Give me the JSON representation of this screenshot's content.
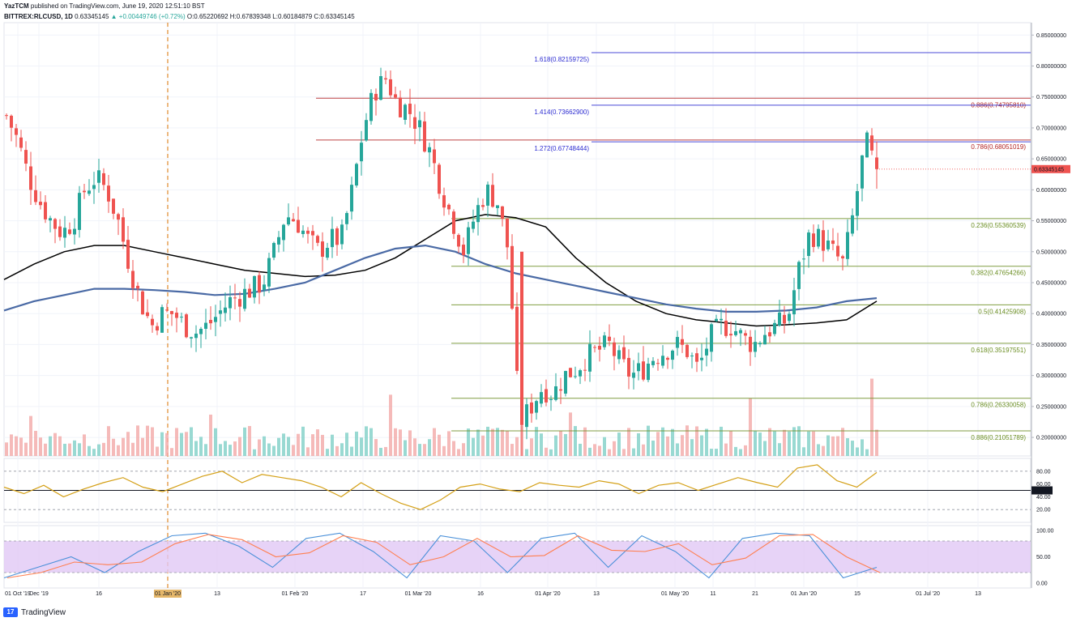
{
  "header": {
    "line1_author": "YazTCM",
    "line1_rest": "published on TradingView.com, June 19, 2020 12:51:10 BST",
    "symbol": "BITTREX:RLCUSD, 1D",
    "last": "0.63345145",
    "change": "▲ +0.00449746 (+0.72%)",
    "ohlc": "O:0.65220692 H:0.67839348 L:0.60184879 C:0.63345145"
  },
  "footer": {
    "brand": "TradingView"
  },
  "colors": {
    "up": "#26a69a",
    "down": "#ef5350",
    "vol_up": "#7fcfc7",
    "vol_down": "#f3a9a7",
    "ma_black": "#000000",
    "ma_blue": "#4a6aa5",
    "fib_green": "#6b8e23",
    "fib_red": "#b22222",
    "fib_blue": "#2c2cd1",
    "rsi": "#d4a017",
    "stoch_k": "#4a90d9",
    "stoch_d": "#ff7f50",
    "stoch_band": "#e1c8f5",
    "event_line": "#e08a2c"
  },
  "chart_data": {
    "type": "candlestick",
    "title": "BITTREX:RLCUSD, 1D",
    "y_range": [
      0.17,
      0.87
    ],
    "price_ticks": [
      "0.85000000",
      "0.80000000",
      "0.75000000",
      "0.70000000",
      "0.65000000",
      "0.60000000",
      "0.55000000",
      "0.50000000",
      "0.45000000",
      "0.40000000",
      "0.35000000",
      "0.30000000",
      "0.25000000",
      "0.20000000"
    ],
    "last_price_label": "0.63345145",
    "x_labels": [
      "01 Oct '19",
      "Dec '19",
      "16",
      "01 Jan '20",
      "13",
      "01 Feb '20",
      "17",
      "01 Mar '20",
      "16",
      "01 Apr '20",
      "13",
      "01 May '20",
      "11",
      "21",
      "01 Jun '20",
      "15",
      "01 Jul '20",
      "13"
    ],
    "fib_levels": [
      {
        "label": "1.618(0.82159725)",
        "value": 0.82159725,
        "side": "left",
        "color": "blue"
      },
      {
        "label": "0.886(0.74795810)",
        "value": 0.7479581,
        "side": "right",
        "color": "red"
      },
      {
        "label": "1.414(0.73662900)",
        "value": 0.736629,
        "side": "left",
        "color": "blue"
      },
      {
        "label": "0.786(0.68051019)",
        "value": 0.68051019,
        "side": "right",
        "color": "red"
      },
      {
        "label": "1.272(0.67748444)",
        "value": 0.67748444,
        "side": "left",
        "color": "blue"
      },
      {
        "label": "0.236(0.55360539)",
        "value": 0.55360539,
        "side": "right",
        "color": "green"
      },
      {
        "label": "0.382(0.47654266)",
        "value": 0.47654266,
        "side": "right",
        "color": "green"
      },
      {
        "label": "0.5(0.41425908)",
        "value": 0.41425908,
        "side": "right",
        "color": "green"
      },
      {
        "label": "0.618(0.35197551)",
        "value": 0.35197551,
        "side": "right",
        "color": "green"
      },
      {
        "label": "0.786(0.26330058)",
        "value": 0.26330058,
        "side": "right",
        "color": "green"
      },
      {
        "label": "0.886(0.21051789)",
        "value": 0.21051789,
        "side": "right",
        "color": "green"
      }
    ],
    "price_path": [
      0.72,
      0.68,
      0.62,
      0.58,
      0.55,
      0.53,
      0.55,
      0.6,
      0.62,
      0.6,
      0.55,
      0.48,
      0.42,
      0.38,
      0.4,
      0.4,
      0.38,
      0.37,
      0.38,
      0.4,
      0.42,
      0.43,
      0.44,
      0.45,
      0.5,
      0.56,
      0.55,
      0.52,
      0.5,
      0.52,
      0.52,
      0.6,
      0.7,
      0.76,
      0.78,
      0.74,
      0.73,
      0.7,
      0.66,
      0.6,
      0.55,
      0.5,
      0.56,
      0.6,
      0.58,
      0.5,
      0.22,
      0.25,
      0.28,
      0.27,
      0.3,
      0.31,
      0.33,
      0.34,
      0.35,
      0.32,
      0.3,
      0.31,
      0.33,
      0.34,
      0.35,
      0.34,
      0.31,
      0.36,
      0.38,
      0.38,
      0.36,
      0.35,
      0.37,
      0.38,
      0.39,
      0.47,
      0.53,
      0.52,
      0.5,
      0.48,
      0.57,
      0.68,
      0.63
    ],
    "series": [
      {
        "name": "MA (black)",
        "values": [
          0.455,
          0.48,
          0.5,
          0.51,
          0.51,
          0.5,
          0.49,
          0.48,
          0.47,
          0.465,
          0.46,
          0.462,
          0.47,
          0.49,
          0.52,
          0.55,
          0.56,
          0.555,
          0.54,
          0.49,
          0.45,
          0.42,
          0.4,
          0.39,
          0.385,
          0.38,
          0.382,
          0.385,
          0.39,
          0.42
        ]
      },
      {
        "name": "MA (blue)",
        "values": [
          0.405,
          0.42,
          0.43,
          0.44,
          0.44,
          0.438,
          0.435,
          0.43,
          0.432,
          0.44,
          0.45,
          0.47,
          0.49,
          0.505,
          0.51,
          0.5,
          0.48,
          0.465,
          0.455,
          0.445,
          0.435,
          0.425,
          0.415,
          0.408,
          0.403,
          0.403,
          0.405,
          0.41,
          0.42,
          0.425
        ]
      }
    ],
    "rsi_ticks": [
      "80.00",
      "60.00",
      "50.00",
      "40.00",
      "20.00"
    ],
    "rsi_badge": "50.00",
    "stoch_ticks": [
      "100.00",
      "50.00",
      "0.00"
    ],
    "rsi_values": [
      55,
      45,
      58,
      40,
      52,
      62,
      70,
      55,
      48,
      60,
      72,
      80,
      62,
      75,
      70,
      65,
      55,
      40,
      62,
      45,
      30,
      20,
      35,
      55,
      60,
      52,
      48,
      62,
      58,
      55,
      65,
      60,
      45,
      58,
      62,
      50,
      60,
      70,
      62,
      55,
      85,
      90,
      65,
      55,
      78
    ],
    "stoch_values": [
      10,
      30,
      50,
      20,
      60,
      90,
      95,
      70,
      30,
      85,
      95,
      60,
      10,
      90,
      80,
      20,
      85,
      95,
      30,
      90,
      60,
      10,
      85,
      95,
      90,
      10,
      30
    ]
  }
}
